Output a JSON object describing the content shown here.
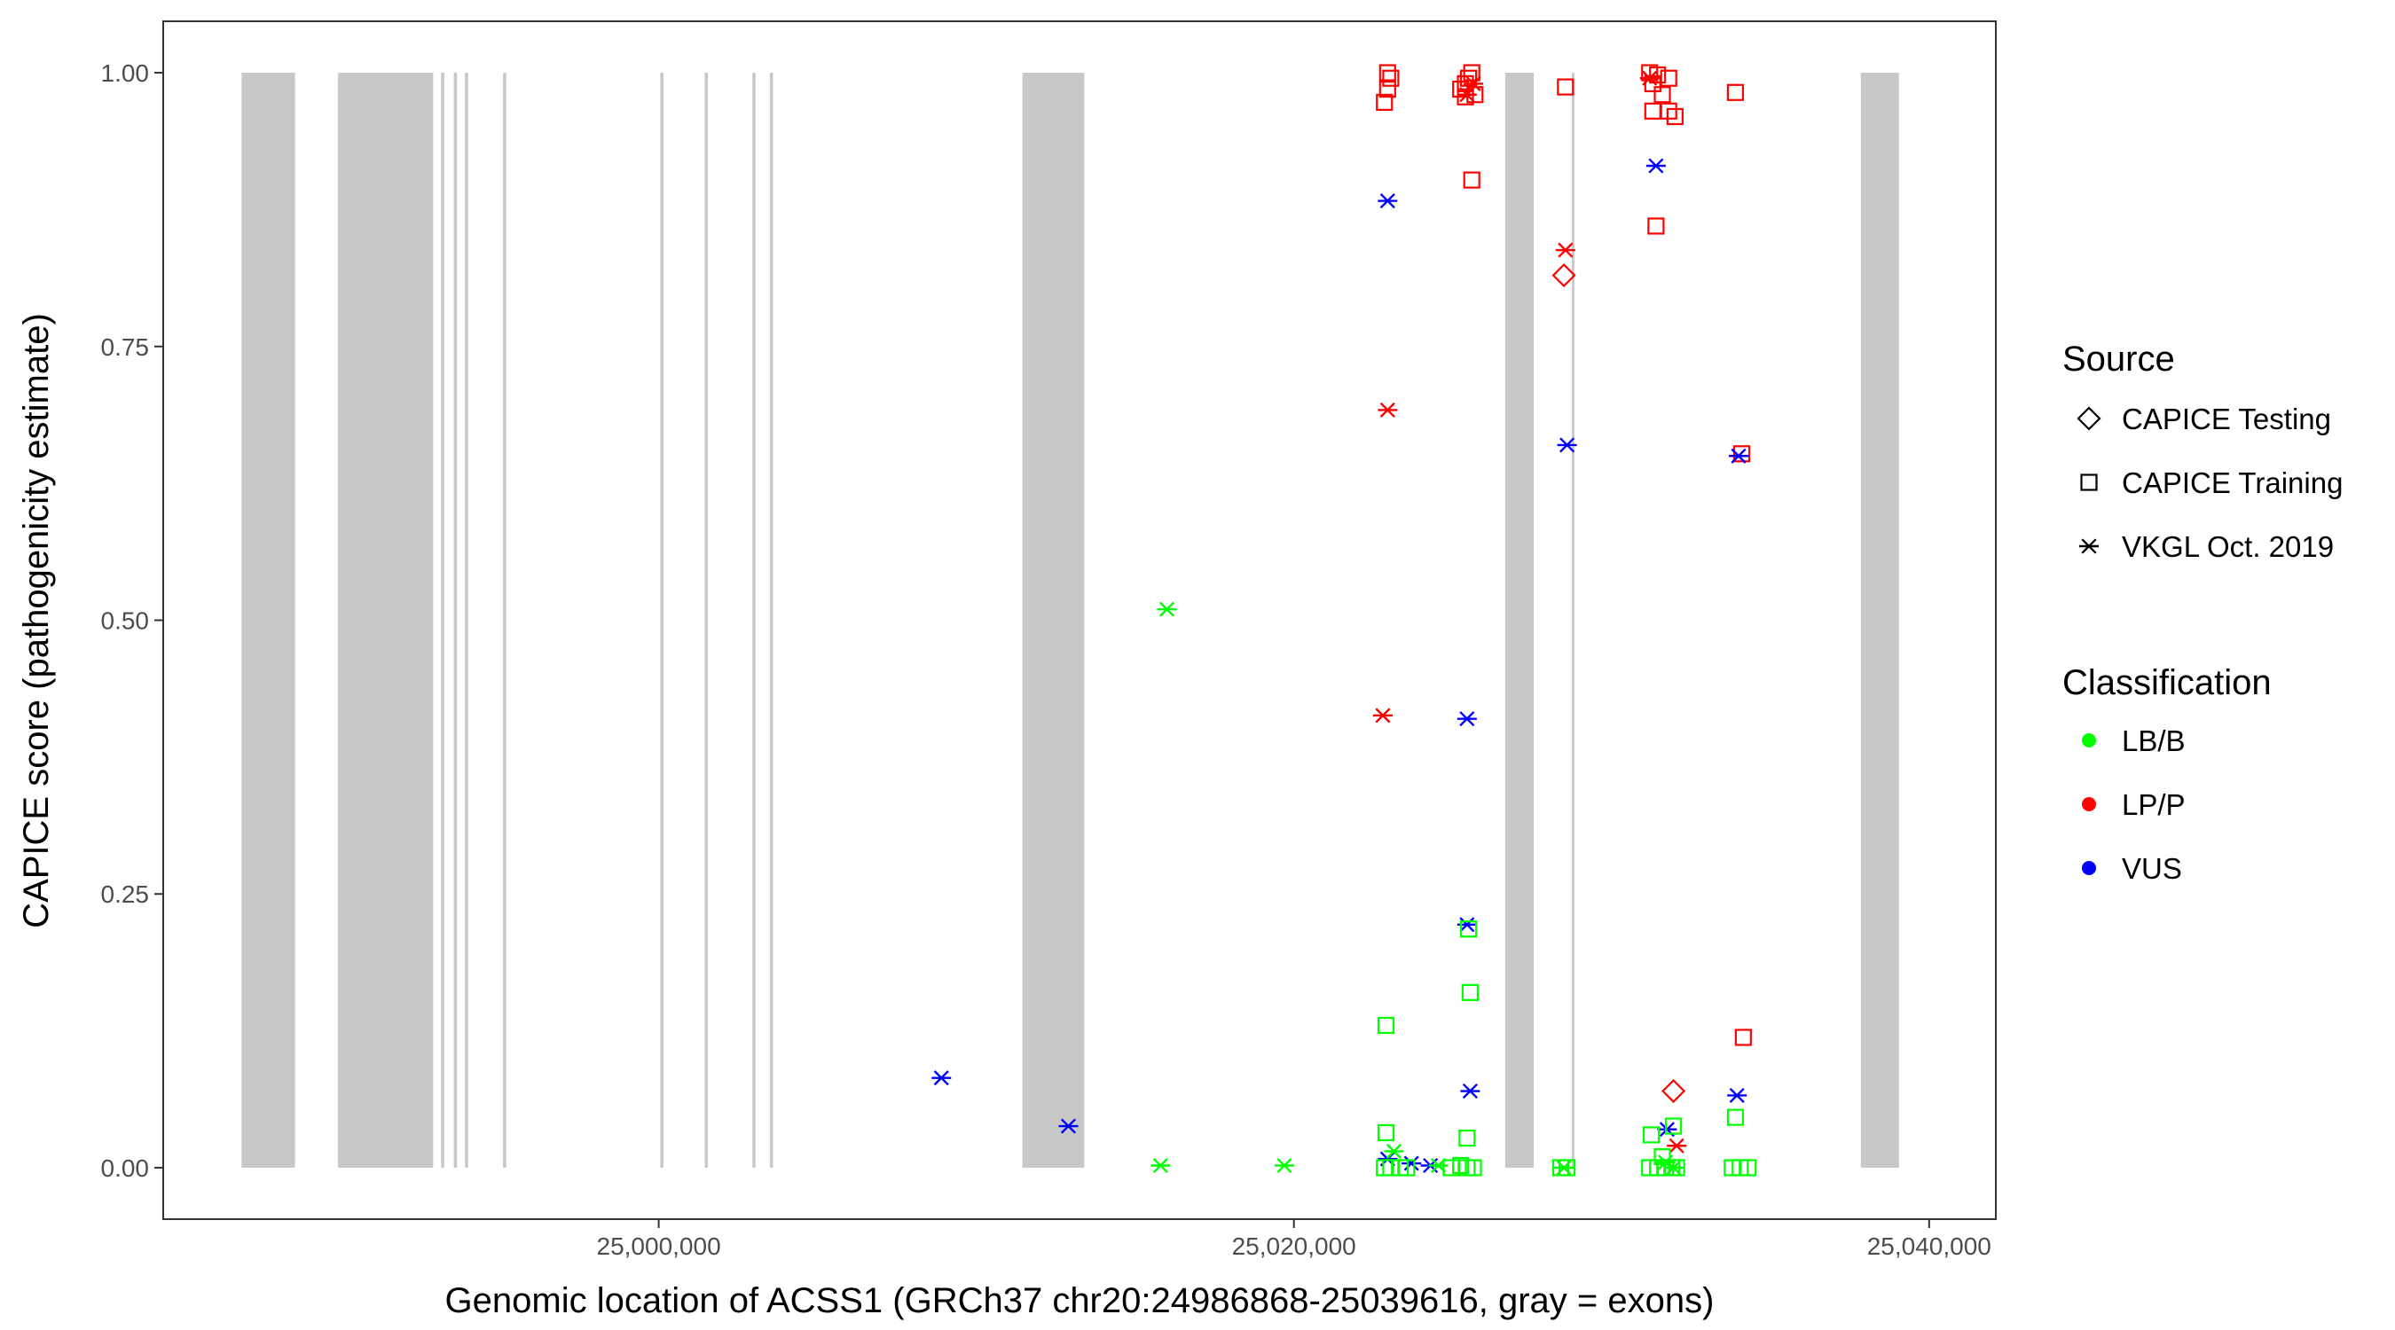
{
  "chart_data": {
    "type": "scatter",
    "xlabel": "Genomic location of ACSS1 (GRCh37 chr20:24986868-25039616, gray = exons)",
    "ylabel": "CAPICE score (pathogenicity estimate)",
    "xlim": [
      24984400,
      25042100
    ],
    "ylim": [
      -0.047,
      1.047
    ],
    "x_ticks": [
      25000000,
      25020000,
      25040000
    ],
    "x_tick_labels": [
      "25,000,000",
      "25,020,000",
      "25,040,000"
    ],
    "y_ticks": [
      0,
      0.25,
      0.5,
      0.75,
      1
    ],
    "y_tick_labels": [
      "0.00",
      "0.25",
      "0.50",
      "0.75",
      "1.00"
    ],
    "grid": false,
    "legend_position": "right",
    "exons": [
      [
        24986868,
        24988550
      ],
      [
        24989900,
        24992900
      ],
      [
        24993150,
        24993250
      ],
      [
        24993550,
        24993650
      ],
      [
        24993900,
        24994000
      ],
      [
        24995100,
        24995200
      ],
      [
        25000050,
        25000150
      ],
      [
        25001450,
        25001550
      ],
      [
        25002950,
        25003050
      ],
      [
        25003500,
        25003600
      ],
      [
        25011450,
        25013400
      ],
      [
        25026650,
        25027550
      ],
      [
        25028750,
        25028830
      ],
      [
        25037850,
        25039050
      ]
    ],
    "legend": {
      "source_title": "Source",
      "source_items": [
        {
          "label": "CAPICE Testing",
          "shape": "diamond"
        },
        {
          "label": "CAPICE Training",
          "shape": "square"
        },
        {
          "label": "VKGL Oct. 2019",
          "shape": "asterisk"
        }
      ],
      "class_title": "Classification",
      "class_items": [
        {
          "label": "LB/B",
          "color": "#00ff00"
        },
        {
          "label": "LP/P",
          "color": "#ff0000"
        },
        {
          "label": "VUS",
          "color": "#0000ff"
        }
      ]
    },
    "colors": {
      "LB/B": "#00ff00",
      "LP/P": "#ff0000",
      "VUS": "#0000ff",
      "exon": "#c8c8c8",
      "frame": "#333333",
      "tick": "#333333"
    },
    "series": [
      {
        "source": "CAPICE Training",
        "class": "LP/P",
        "points": [
          [
            25022950,
            1.0
          ],
          [
            25023050,
            0.995
          ],
          [
            25022950,
            0.985
          ],
          [
            25022850,
            0.973
          ],
          [
            25025250,
            0.985
          ],
          [
            25025400,
            0.99
          ],
          [
            25025500,
            0.995
          ],
          [
            25025600,
            1.0
          ],
          [
            25025400,
            0.978
          ],
          [
            25025700,
            0.98
          ],
          [
            25025600,
            0.902
          ],
          [
            25028550,
            0.987
          ],
          [
            25031200,
            1.0
          ],
          [
            25031450,
            0.998
          ],
          [
            25031800,
            0.995
          ],
          [
            25031300,
            0.99
          ],
          [
            25031600,
            0.98
          ],
          [
            25031800,
            0.965
          ],
          [
            25031300,
            0.965
          ],
          [
            25032000,
            0.96
          ],
          [
            25031400,
            0.86
          ],
          [
            25033900,
            0.982
          ],
          [
            25034100,
            0.652
          ],
          [
            25034150,
            0.119
          ]
        ]
      },
      {
        "source": "CAPICE Testing",
        "class": "LP/P",
        "points": [
          [
            25028500,
            0.815
          ],
          [
            25031950,
            0.07
          ]
        ]
      },
      {
        "source": "VKGL Oct. 2019",
        "class": "LP/P",
        "points": [
          [
            25025450,
            0.98
          ],
          [
            25025650,
            0.99
          ],
          [
            25028550,
            0.838
          ],
          [
            25031200,
            0.995
          ],
          [
            25022950,
            0.692
          ],
          [
            25022800,
            0.413
          ],
          [
            25032050,
            0.02
          ],
          [
            25034000,
            0.65
          ]
        ]
      },
      {
        "source": "VKGL Oct. 2019",
        "class": "VUS",
        "points": [
          [
            25022950,
            0.883
          ],
          [
            25031400,
            0.915
          ],
          [
            25028600,
            0.66
          ],
          [
            25034000,
            0.65
          ],
          [
            25025450,
            0.41
          ],
          [
            25025450,
            0.222
          ],
          [
            25025550,
            0.07
          ],
          [
            25033950,
            0.066
          ],
          [
            25008900,
            0.082
          ],
          [
            25012900,
            0.038
          ],
          [
            25031750,
            0.035
          ],
          [
            25022950,
            0.008
          ],
          [
            25023700,
            0.004
          ],
          [
            25024300,
            0.002
          ]
        ]
      },
      {
        "source": "VKGL Oct. 2019",
        "class": "LB/B",
        "points": [
          [
            25016000,
            0.51
          ],
          [
            25015800,
            0.002
          ],
          [
            25019700,
            0.002
          ],
          [
            25023150,
            0.015
          ],
          [
            25024550,
            0.002
          ],
          [
            25028500,
            0.0
          ],
          [
            25031700,
            0.005
          ],
          [
            25031950,
            0.0
          ]
        ]
      },
      {
        "source": "CAPICE Training",
        "class": "LB/B",
        "points": [
          [
            25025500,
            0.218
          ],
          [
            25025550,
            0.16
          ],
          [
            25022900,
            0.13
          ],
          [
            25022900,
            0.032
          ],
          [
            25025450,
            0.027
          ],
          [
            25031250,
            0.03
          ],
          [
            25031950,
            0.038
          ],
          [
            25033900,
            0.046
          ],
          [
            25031600,
            0.01
          ],
          [
            25022850,
            0.0
          ],
          [
            25023050,
            0.0
          ],
          [
            25023350,
            0.0
          ],
          [
            25023550,
            0.0
          ],
          [
            25024950,
            0.0
          ],
          [
            25025250,
            0.002
          ],
          [
            25025450,
            0.0
          ],
          [
            25025650,
            0.0
          ],
          [
            25028400,
            0.0
          ],
          [
            25028600,
            0.0
          ],
          [
            25031200,
            0.0
          ],
          [
            25031450,
            0.0
          ],
          [
            25031700,
            0.0
          ],
          [
            25031900,
            0.0
          ],
          [
            25032050,
            0.0
          ],
          [
            25033800,
            0.0
          ],
          [
            25034050,
            0.0
          ],
          [
            25034300,
            0.0
          ]
        ]
      }
    ]
  }
}
